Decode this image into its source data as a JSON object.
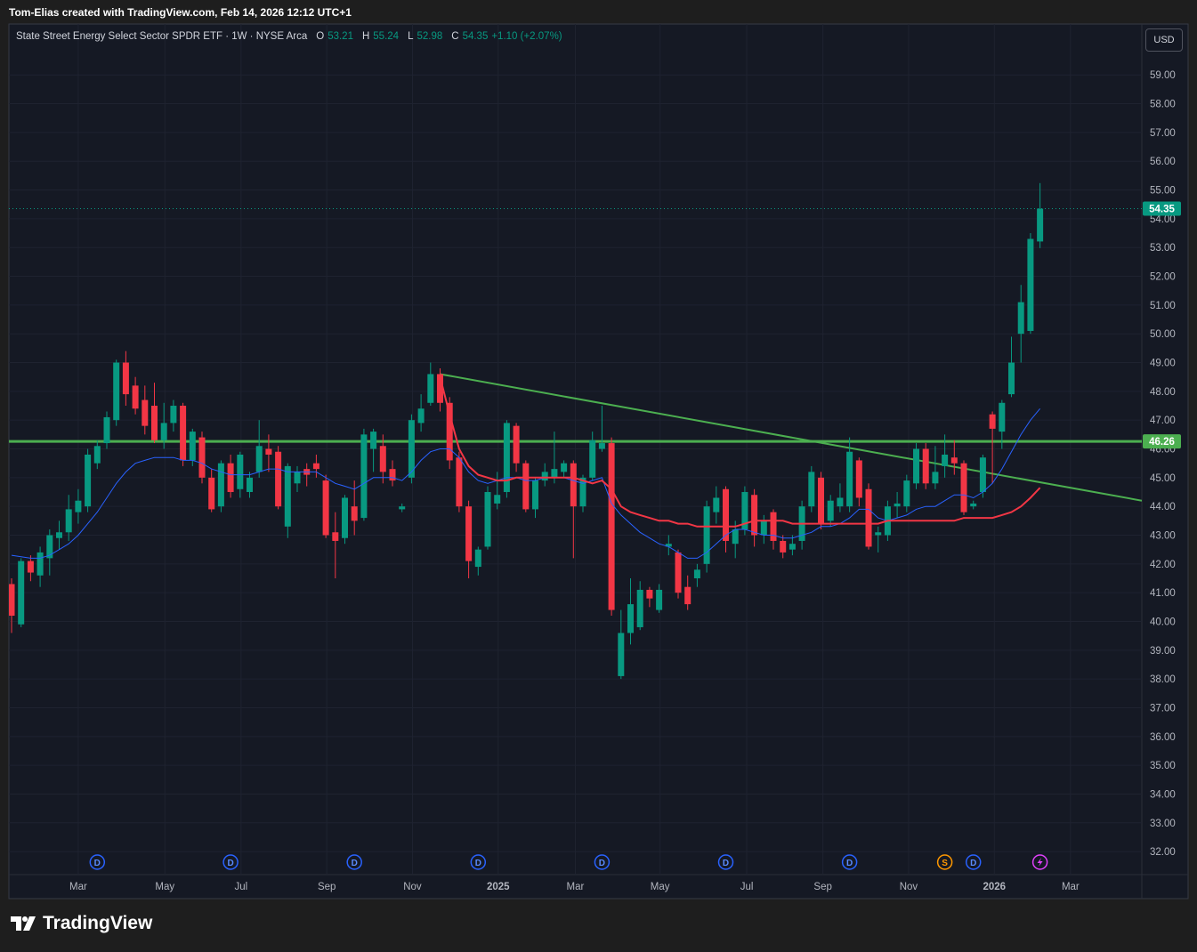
{
  "header": {
    "credit": "Tom-Elias created with TradingView.com, Feb 14, 2026 12:12 UTC+1"
  },
  "legend": {
    "symbol": "State Street Energy Select Sector SPDR ETF · 1W · NYSE Arca",
    "ohlc": [
      {
        "label": "O",
        "value": "53.21"
      },
      {
        "label": "H",
        "value": "55.24"
      },
      {
        "label": "L",
        "value": "52.98"
      },
      {
        "label": "C",
        "value": "54.35"
      }
    ],
    "change": "+1.10 (+2.07%)"
  },
  "currency": "USD",
  "footer": {
    "logo": "TradingView"
  },
  "chart_data": {
    "type": "candlestick",
    "up_color": "#089981",
    "down_color": "#f23645",
    "grid": true,
    "xlim": [
      -0.28,
      118.69
    ],
    "ylim": [
      31.2,
      60.77
    ],
    "xticks": [
      {
        "value": 7.0,
        "label": "Mar"
      },
      {
        "value": 16.1,
        "label": "May"
      },
      {
        "value": 24.1,
        "label": "Jul"
      },
      {
        "value": 33.1,
        "label": "Sep"
      },
      {
        "value": 42.1,
        "label": "Nov"
      },
      {
        "value": 51.1,
        "label": "2025"
      },
      {
        "value": 59.2,
        "label": "Mar"
      },
      {
        "value": 68.1,
        "label": "May"
      },
      {
        "value": 77.2,
        "label": "Jul"
      },
      {
        "value": 85.2,
        "label": "Sep"
      },
      {
        "value": 94.2,
        "label": "Nov"
      },
      {
        "value": 103.2,
        "label": "2026"
      },
      {
        "value": 111.2,
        "label": "Mar"
      }
    ],
    "yticks": [
      {
        "value": 32,
        "label": "32.00"
      },
      {
        "value": 33,
        "label": "33.00"
      },
      {
        "value": 34,
        "label": "34.00"
      },
      {
        "value": 35,
        "label": "35.00"
      },
      {
        "value": 36,
        "label": "36.00"
      },
      {
        "value": 37,
        "label": "37.00"
      },
      {
        "value": 38,
        "label": "38.00"
      },
      {
        "value": 39,
        "label": "39.00"
      },
      {
        "value": 40,
        "label": "40.00"
      },
      {
        "value": 41,
        "label": "41.00"
      },
      {
        "value": 42,
        "label": "42.00"
      },
      {
        "value": 43,
        "label": "43.00"
      },
      {
        "value": 44,
        "label": "44.00"
      },
      {
        "value": 45,
        "label": "45.00"
      },
      {
        "value": 46,
        "label": "46.00"
      },
      {
        "value": 47,
        "label": "47.00"
      },
      {
        "value": 48,
        "label": "48.00"
      },
      {
        "value": 49,
        "label": "49.00"
      },
      {
        "value": 50,
        "label": "50.00"
      },
      {
        "value": 51,
        "label": "51.00"
      },
      {
        "value": 52,
        "label": "52.00"
      },
      {
        "value": 53,
        "label": "53.00"
      },
      {
        "value": 54,
        "label": "54.00"
      },
      {
        "value": 55,
        "label": "55.00"
      },
      {
        "value": 56,
        "label": "56.00"
      },
      {
        "value": 57,
        "label": "57.00"
      },
      {
        "value": 58,
        "label": "58.00"
      },
      {
        "value": 59,
        "label": "59.00"
      }
    ],
    "open": [
      41.3,
      39.9,
      42.1,
      41.6,
      42.2,
      42.9,
      43.1,
      43.8,
      44.0,
      45.5,
      46.2,
      47.0,
      49.0,
      48.2,
      47.7,
      47.5,
      46.3,
      46.9,
      47.5,
      45.6,
      46.4,
      45.0,
      44.0,
      45.5,
      44.6,
      44.5,
      45.2,
      46.0,
      45.9,
      43.3,
      44.8,
      45.3,
      45.5,
      44.9,
      43.1,
      42.9,
      44.0,
      43.6,
      46.0,
      46.1,
      45.3,
      43.9,
      45.0,
      46.9,
      47.6,
      48.6,
      47.6,
      45.7,
      44.0,
      41.9,
      42.6,
      44.1,
      44.5,
      46.8,
      45.5,
      43.9,
      44.9,
      45.0,
      45.2,
      45.5,
      44.0,
      45.0,
      46.0,
      46.2,
      38.1,
      39.6,
      39.8,
      41.1,
      40.4,
      42.6,
      42.4,
      41.2,
      41.5,
      42.0,
      43.8,
      44.6,
      42.7,
      43.2,
      44.4,
      43.0,
      43.8,
      42.8,
      42.5,
      42.8,
      44.0,
      45.0,
      43.5,
      44.0,
      44.0,
      45.6,
      44.6,
      43.0,
      43.0,
      44.0,
      44.0,
      44.8,
      46.0,
      44.8,
      45.4,
      45.7,
      45.5,
      44.0,
      44.5,
      47.2,
      46.6,
      47.9,
      50.0,
      50.1,
      53.21
    ],
    "high": [
      41.5,
      42.2,
      42.3,
      42.6,
      43.2,
      43.5,
      44.4,
      44.6,
      46.0,
      46.3,
      47.3,
      49.1,
      49.4,
      48.5,
      48.2,
      48.3,
      47.6,
      47.7,
      47.6,
      46.7,
      46.6,
      45.3,
      45.6,
      45.8,
      45.9,
      45.2,
      47.0,
      46.5,
      46.1,
      45.5,
      45.4,
      45.5,
      45.8,
      45.1,
      43.8,
      44.4,
      44.9,
      46.7,
      46.7,
      46.5,
      45.6,
      44.1,
      47.2,
      47.9,
      49.0,
      48.8,
      47.8,
      45.9,
      44.2,
      42.6,
      44.7,
      45.2,
      47.0,
      46.9,
      45.6,
      45.0,
      45.5,
      46.6,
      45.6,
      45.6,
      45.1,
      46.6,
      47.5,
      46.4,
      40.4,
      41.5,
      41.4,
      41.2,
      41.3,
      43.0,
      42.5,
      41.6,
      42.0,
      44.2,
      44.7,
      44.7,
      43.5,
      44.7,
      44.6,
      43.7,
      43.9,
      43.0,
      43.0,
      44.2,
      45.4,
      45.2,
      44.4,
      44.8,
      46.4,
      45.7,
      44.8,
      43.3,
      44.2,
      44.5,
      45.1,
      46.2,
      46.2,
      46.1,
      46.5,
      46.3,
      45.6,
      44.2,
      45.8,
      47.3,
      47.7,
      49.9,
      51.7,
      53.5,
      55.24
    ],
    "low": [
      39.6,
      39.8,
      41.4,
      41.2,
      41.6,
      42.5,
      42.8,
      43.4,
      43.8,
      45.3,
      46.0,
      46.8,
      47.5,
      47.2,
      46.5,
      46.2,
      46.0,
      46.6,
      45.4,
      45.4,
      44.8,
      43.8,
      43.8,
      44.3,
      44.3,
      44.3,
      45.0,
      45.2,
      43.9,
      42.9,
      44.5,
      44.7,
      45.0,
      42.9,
      41.5,
      42.7,
      43.0,
      43.5,
      45.2,
      44.8,
      44.7,
      43.8,
      44.8,
      46.6,
      47.5,
      47.3,
      45.3,
      43.8,
      41.5,
      41.6,
      42.5,
      43.9,
      44.3,
      45.2,
      43.8,
      43.6,
      44.7,
      44.8,
      45.0,
      42.2,
      43.8,
      44.9,
      45.9,
      40.2,
      38.0,
      39.2,
      39.7,
      40.5,
      40.3,
      42.3,
      40.8,
      40.4,
      41.2,
      41.7,
      43.4,
      42.4,
      42.2,
      43.0,
      42.6,
      42.7,
      42.5,
      42.2,
      42.3,
      42.5,
      43.8,
      43.2,
      43.3,
      43.8,
      43.8,
      44.0,
      42.5,
      42.4,
      42.8,
      43.6,
      43.8,
      44.6,
      44.6,
      44.6,
      45.0,
      45.1,
      43.7,
      43.9,
      44.3,
      44.8,
      46.0,
      47.8,
      49.0,
      50.0,
      52.98
    ],
    "close": [
      40.2,
      42.1,
      41.7,
      42.4,
      43.0,
      43.1,
      43.9,
      44.2,
      45.8,
      46.1,
      47.1,
      49.0,
      47.9,
      47.4,
      46.8,
      46.3,
      46.9,
      47.5,
      45.6,
      46.6,
      45.0,
      43.9,
      45.5,
      44.5,
      45.8,
      45.0,
      46.1,
      45.8,
      44.0,
      45.4,
      45.2,
      45.1,
      45.3,
      43.0,
      42.8,
      44.3,
      43.5,
      46.5,
      46.6,
      45.2,
      44.9,
      44.0,
      47.0,
      47.4,
      48.6,
      47.6,
      45.6,
      44.0,
      42.1,
      42.5,
      44.5,
      44.4,
      46.9,
      45.5,
      43.9,
      44.9,
      45.2,
      45.3,
      45.5,
      44.0,
      45.0,
      46.3,
      46.2,
      40.4,
      39.6,
      40.6,
      41.1,
      40.8,
      41.1,
      42.7,
      41.0,
      40.6,
      41.8,
      44.0,
      44.3,
      42.8,
      43.2,
      44.5,
      43.0,
      43.5,
      42.8,
      42.4,
      42.7,
      44.0,
      45.2,
      43.4,
      44.2,
      44.3,
      45.9,
      44.3,
      42.6,
      43.1,
      44.0,
      44.1,
      44.9,
      46.0,
      44.8,
      45.2,
      45.8,
      45.5,
      43.8,
      44.1,
      45.7,
      46.7,
      47.6,
      49.0,
      51.1,
      53.3,
      54.35
    ],
    "moving_averages": [
      {
        "color": "#2962ff",
        "width": 1,
        "values": [
          42.3,
          42.25,
          42.2,
          42.2,
          42.3,
          42.5,
          42.7,
          43.0,
          43.4,
          43.8,
          44.3,
          44.8,
          45.2,
          45.5,
          45.6,
          45.7,
          45.7,
          45.7,
          45.6,
          45.6,
          45.5,
          45.3,
          45.2,
          45.1,
          45.1,
          45.1,
          45.2,
          45.3,
          45.3,
          45.2,
          45.2,
          45.2,
          45.2,
          45.0,
          44.8,
          44.7,
          44.6,
          44.8,
          45.0,
          45.0,
          45.0,
          44.9,
          45.2,
          45.6,
          45.9,
          46.0,
          46.0,
          45.7,
          45.2,
          44.9,
          44.8,
          44.9,
          45.0,
          45.0,
          44.9,
          44.9,
          45.0,
          45.0,
          45.0,
          44.9,
          44.8,
          44.9,
          45.0,
          44.1,
          43.7,
          43.4,
          43.1,
          42.9,
          42.7,
          42.6,
          42.4,
          42.2,
          42.2,
          42.4,
          42.7,
          43.0,
          43.2,
          43.2,
          43.1,
          43.0,
          43.0,
          42.9,
          42.9,
          43.0,
          43.1,
          43.3,
          43.3,
          43.4,
          43.6,
          43.9,
          43.9,
          43.6,
          43.5,
          43.6,
          43.7,
          43.9,
          44.0,
          44.0,
          44.2,
          44.4,
          44.4,
          44.3,
          44.5,
          44.8,
          45.3,
          45.9,
          46.5,
          47.0,
          47.4
        ]
      },
      {
        "color": "#f23645",
        "width": 2,
        "values": [
          null,
          null,
          null,
          null,
          null,
          null,
          null,
          null,
          null,
          null,
          null,
          null,
          null,
          null,
          null,
          null,
          null,
          null,
          null,
          null,
          null,
          null,
          null,
          null,
          null,
          null,
          null,
          null,
          null,
          null,
          null,
          null,
          null,
          null,
          null,
          null,
          null,
          null,
          null,
          null,
          null,
          null,
          null,
          null,
          null,
          48.5,
          47.2,
          46.0,
          45.4,
          45.1,
          45.0,
          44.9,
          44.9,
          45.0,
          45.0,
          45.0,
          45.0,
          45.0,
          45.0,
          45.0,
          44.9,
          44.8,
          44.9,
          44.6,
          44.0,
          43.8,
          43.7,
          43.6,
          43.5,
          43.5,
          43.4,
          43.4,
          43.3,
          43.3,
          43.3,
          43.3,
          43.3,
          43.4,
          43.5,
          43.5,
          43.5,
          43.5,
          43.4,
          43.4,
          43.4,
          43.4,
          43.4,
          43.4,
          43.4,
          43.4,
          43.4,
          43.4,
          43.5,
          43.5,
          43.5,
          43.5,
          43.5,
          43.5,
          43.5,
          43.5,
          43.6,
          43.6,
          43.6,
          43.6,
          43.7,
          43.8,
          44.0,
          44.3,
          44.65
        ]
      }
    ],
    "levels": [
      46.26
    ],
    "level_color": "#4caf50",
    "trendline": {
      "x": [
        45,
        118.69
      ],
      "y": [
        48.6,
        44.2
      ],
      "color": "#4caf50"
    },
    "last_price": 54.35,
    "events": [
      {
        "x": 9,
        "label": "D"
      },
      {
        "x": 23,
        "label": "D"
      },
      {
        "x": 36,
        "label": "D"
      },
      {
        "x": 49,
        "label": "D"
      },
      {
        "x": 62,
        "label": "D"
      },
      {
        "x": 75,
        "label": "D"
      },
      {
        "x": 88,
        "label": "D"
      },
      {
        "x": 98,
        "label": "S"
      },
      {
        "x": 101,
        "label": "D"
      },
      {
        "x": 108
      }
    ]
  }
}
